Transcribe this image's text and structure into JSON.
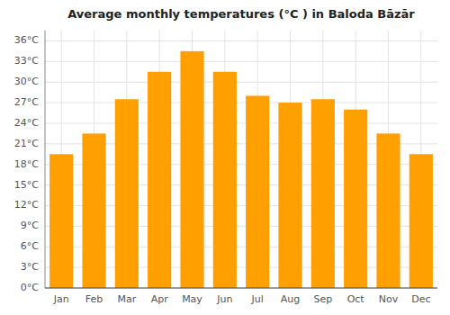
{
  "chart_data": {
    "type": "bar",
    "title": "Average monthly temperatures (°C ) in Baloda Bāzār",
    "categories": [
      "Jan",
      "Feb",
      "Mar",
      "Apr",
      "May",
      "Jun",
      "Jul",
      "Aug",
      "Sep",
      "Oct",
      "Nov",
      "Dec"
    ],
    "values": [
      19.5,
      22.5,
      27.5,
      31.5,
      34.5,
      31.5,
      28.0,
      27.0,
      27.5,
      26.0,
      22.5,
      19.5
    ],
    "color": "#FFA000",
    "ylim": [
      0,
      37.5
    ],
    "yticks": [
      {
        "value": 0,
        "label": "0°C"
      },
      {
        "value": 3,
        "label": "3°C"
      },
      {
        "value": 6,
        "label": "6°C"
      },
      {
        "value": 9,
        "label": "9°C"
      },
      {
        "value": 12,
        "label": "12°C"
      },
      {
        "value": 15,
        "label": "15°C"
      },
      {
        "value": 18,
        "label": "18°C"
      },
      {
        "value": 21,
        "label": "21°C"
      },
      {
        "value": 24,
        "label": "24°C"
      },
      {
        "value": 27,
        "label": "27°C"
      },
      {
        "value": 30,
        "label": "30°C"
      },
      {
        "value": 33,
        "label": "33°C"
      },
      {
        "value": 36,
        "label": "36°C"
      }
    ],
    "grid": true
  }
}
